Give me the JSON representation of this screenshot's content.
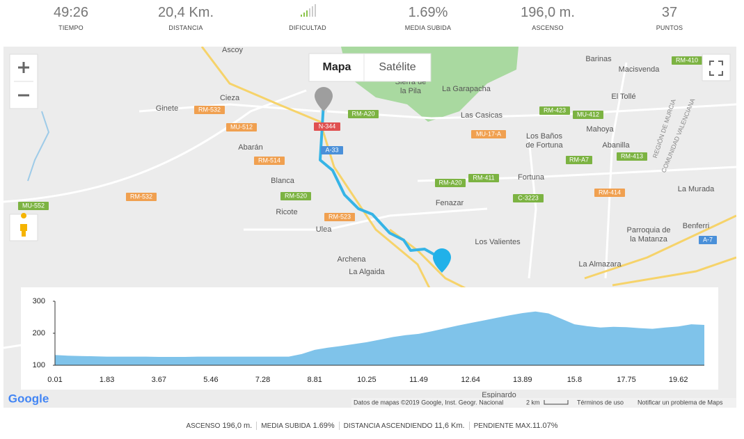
{
  "stats": [
    {
      "value": "49:26",
      "label": "TIEMPO"
    },
    {
      "value": "20,4 Km.",
      "label": "DISTANCIA"
    },
    {
      "label": "DIFICULTAD"
    },
    {
      "value": "1.69%",
      "label": "MEDIA SUBIDA"
    },
    {
      "value": "196,0 m.",
      "label": "ASCENSO"
    },
    {
      "value": "37",
      "label": "PUNTOS"
    }
  ],
  "map": {
    "buttons": [
      "Mapa",
      "Satélite"
    ],
    "places": [
      "Ascoy",
      "Cieza",
      "Ginete",
      "Abarán",
      "Blanca",
      "Ricote",
      "Ulea",
      "Archena",
      "La Algaida",
      "Sierra de la Pila",
      "La Garapacha",
      "Las Casicas",
      "Los Baños de Fortuna",
      "Fortuna",
      "Fenazar",
      "Los Valientes",
      "Barinas",
      "Macisvenda",
      "El Tollé",
      "Mahoya",
      "Abanilla",
      "La Murada",
      "Benferri",
      "Parroquia de la Matanza",
      "La Almazara",
      "Espinardo"
    ],
    "regions": [
      "REGIÓN DE MURCIA",
      "COMUNIDAD VALENCIANA"
    ],
    "roads": [
      "RM-532",
      "MU-512",
      "RM-514",
      "RM-532",
      "RM-520",
      "RM-523",
      "N-344",
      "A-33",
      "RM-A20",
      "RM-A20",
      "RM-411",
      "MU-17-A",
      "RM-423",
      "MU-412",
      "RM-A7",
      "RM-413",
      "RM-414",
      "C-3223",
      "RM-410",
      "MU-552",
      "A-7"
    ],
    "logo": "Google",
    "attribution": "Datos de mapas ©2019 Google, Inst. Geogr. Nacional",
    "scale": "2 km",
    "terms": "Términos de uso",
    "report": "Notificar un problema de Maps"
  },
  "chart_data": {
    "type": "area",
    "color": "#7fc3ea",
    "categories": [
      "0.01",
      null,
      null,
      null,
      "1.83",
      null,
      null,
      null,
      "3.67",
      null,
      null,
      null,
      "5.46",
      null,
      null,
      null,
      "7.28",
      null,
      null,
      null,
      "8.81",
      null,
      null,
      null,
      "10.25",
      null,
      null,
      null,
      "11.49",
      null,
      null,
      null,
      "12.64",
      null,
      null,
      null,
      "13.89",
      null,
      null,
      null,
      "15.8",
      null,
      null,
      null,
      "17.75",
      null,
      null,
      null,
      "19.62",
      null,
      null
    ],
    "values": [
      132,
      130,
      129,
      128,
      127,
      127,
      127,
      127,
      126,
      126,
      126,
      127,
      127,
      127,
      127,
      127,
      127,
      127,
      127,
      135,
      148,
      155,
      160,
      166,
      172,
      180,
      188,
      194,
      198,
      206,
      215,
      224,
      232,
      240,
      248,
      256,
      263,
      268,
      262,
      245,
      228,
      222,
      218,
      220,
      219,
      216,
      214,
      218,
      221,
      228,
      226
    ],
    "ylim": [
      100,
      300
    ],
    "yticks": [
      100,
      200,
      300
    ]
  },
  "footer": [
    {
      "label": "ASCENSO",
      "value": "196,0 m."
    },
    {
      "label": "MEDIA SUBIDA",
      "value": "1.69%"
    },
    {
      "label": "DISTANCIA ASCENDIENDO",
      "value": "11,6 Km."
    },
    {
      "label": "PENDIENTE MAX.",
      "value": "11.07%"
    }
  ]
}
